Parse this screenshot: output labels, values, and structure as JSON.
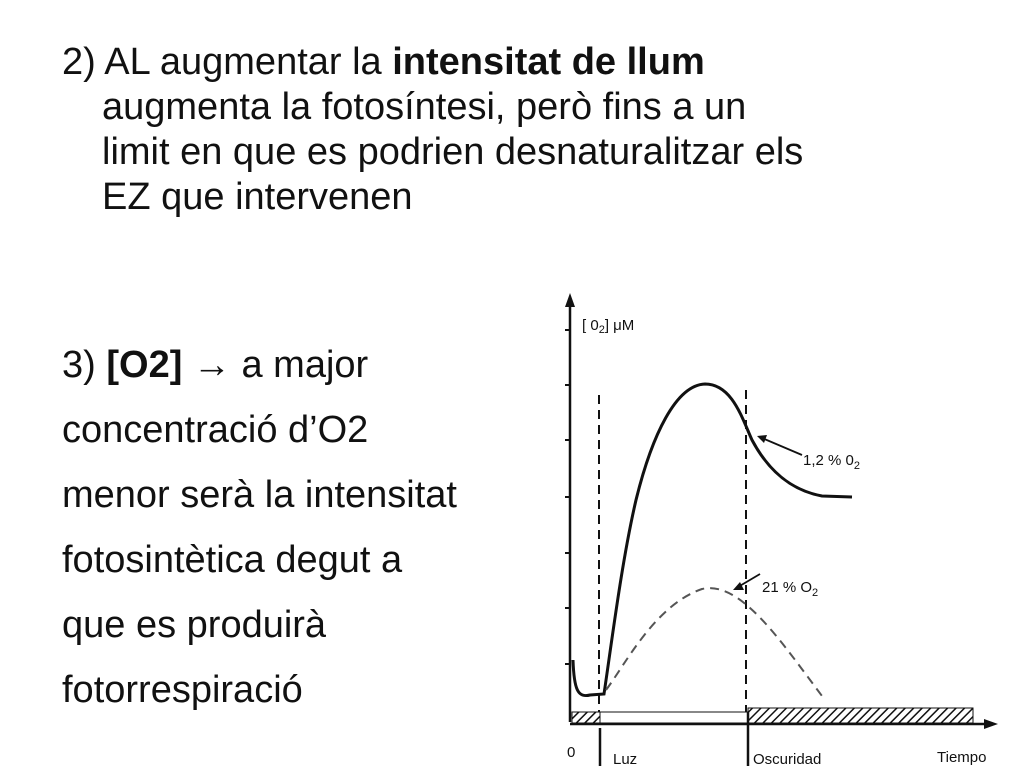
{
  "point2": {
    "prefix": "2) AL augmentar la ",
    "bold": "intensitat de llum",
    "lines": [
      "augmenta la fotosíntesi, però fins a un",
      "limit en que es podrien desnaturalitzar els",
      "EZ que intervenen"
    ]
  },
  "point3": {
    "prefix": "3) ",
    "bold": "[O2]",
    "arrow": "→",
    "suffix": " a major",
    "lines": [
      "concentració d’O2",
      "menor serà la intensitat",
      "fotosintètica degut a",
      "que es produirà",
      "fotorrespiració"
    ]
  },
  "graph": {
    "y_axis_label": "[ 0",
    "y_axis_label_sub": "2",
    "y_axis_label_unit": "] μM",
    "x_axis_label": "Tiempo",
    "origin_label": "0",
    "light_label": "Luz",
    "dark_label": "Oscuridad",
    "curve_high_label": "1,2 %  0",
    "curve_high_label_sub": "2",
    "curve_low_label": "21 %  O",
    "curve_low_label_sub": "2",
    "colors": {
      "ink": "#111111",
      "dashed_curve": "#555555"
    }
  }
}
